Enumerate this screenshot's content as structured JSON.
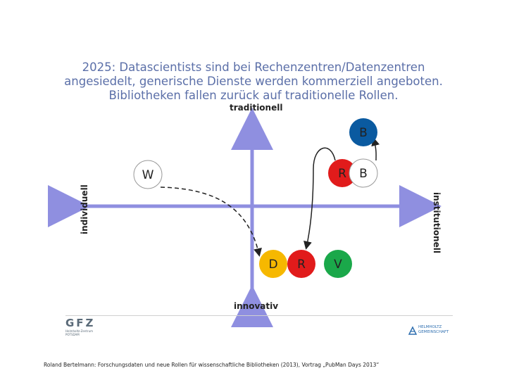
{
  "title": {
    "line1": "2025: Datascientists sind bei Rechenzentren/Datenzentren",
    "line2": "angesiedelt, generische Dienste werden kommerziell angeboten.",
    "line3": "Bibliotheken fallen zurück auf traditionelle Rollen."
  },
  "axes": {
    "top": "traditionell",
    "bottom": "innovativ",
    "left": "individuell",
    "right": "institutionell"
  },
  "nodes": [
    {
      "id": "W",
      "label": "W",
      "color": "#ffffff"
    },
    {
      "id": "B-top",
      "label": "B",
      "color": "#0a5aa0"
    },
    {
      "id": "R-top",
      "label": "R",
      "color": "#e11b1b"
    },
    {
      "id": "B-mid",
      "label": "B",
      "color": "#ffffff"
    },
    {
      "id": "D",
      "label": "D",
      "color": "#f6b800"
    },
    {
      "id": "R-bottom",
      "label": "R",
      "color": "#e11b1b"
    },
    {
      "id": "V",
      "label": "V",
      "color": "#1aa84a"
    }
  ],
  "logos": {
    "gfz_main": "GFZ",
    "gfz_sub1": "Helmholtz-Zentrum",
    "gfz_sub2": "POTSDAM",
    "helmholtz_line1": "HELMHOLTZ",
    "helmholtz_line2": "GEMEINSCHAFT"
  },
  "footer": "Roland Bertelmann: Forschungsdaten und neue Rollen für wissenschaftliche Bibliotheken (2013), Vortrag „PubMan Days 2013“",
  "colors": {
    "title": "#5b6fa8",
    "axis": "#8f8fe0"
  }
}
